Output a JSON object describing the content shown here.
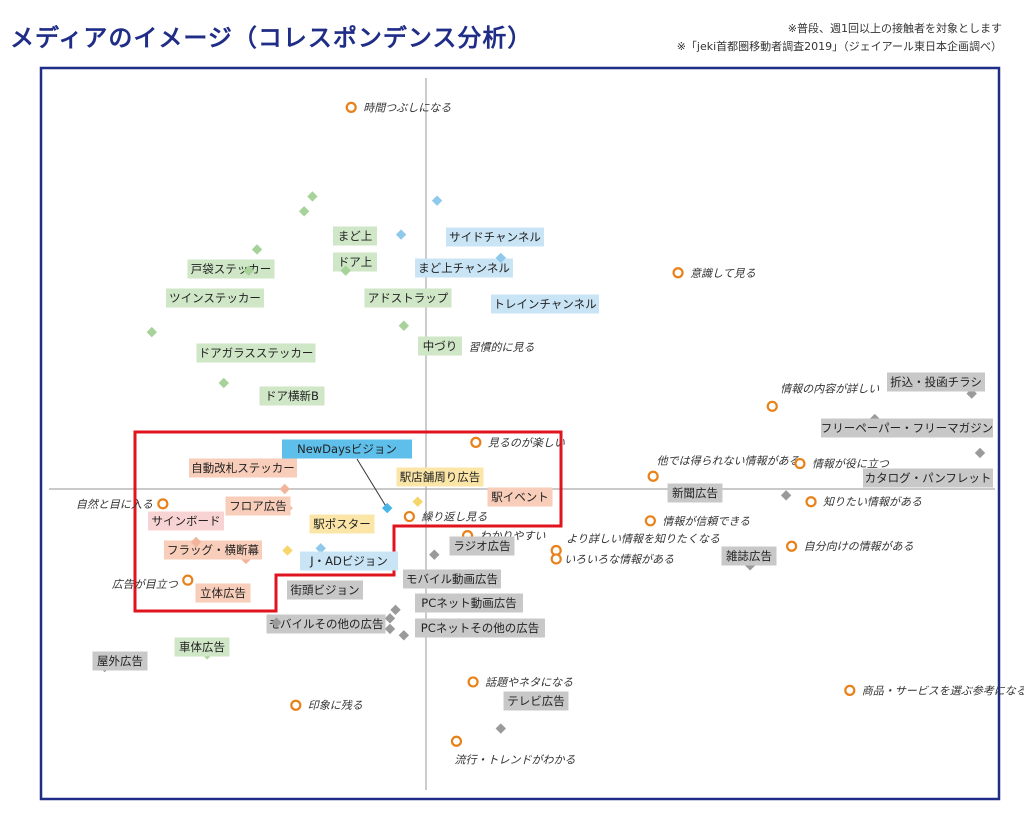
{
  "title": "メディアのイメージ（コレスポンデンス分析）",
  "notes": [
    "※普段、週1回以上の接触者を対象とします",
    "※「jeki首都圏移動者調査2019」（ジェイアール東日本企画調べ）"
  ],
  "colors": {
    "frame": "#1f2d86",
    "highlight": "#e0141e",
    "orange_marker": "#e8811a",
    "green_box": "#cfe6c7",
    "green_marker": "#a7d29a",
    "blue_box": "#c9e4f5",
    "blue_marker": "#8ec9ec",
    "gray_box": "#c8c8c8",
    "gray_marker": "#9a9a9a",
    "salmon_box": "#f8cdb9",
    "salmon_marker": "#f2b49a",
    "pink_box": "#f8d3d3",
    "yellow_box": "#fbe6a8",
    "yellow_marker": "#f6d56b",
    "cyan_box": "#5ebfea",
    "cyan_marker": "#47b7e8"
  },
  "chart_data": {
    "type": "scatter",
    "title": "メディアのイメージ（コレスポンデンス分析）",
    "xlabel": "",
    "ylabel": "",
    "xlim": [
      -1,
      1
    ],
    "ylim": [
      -1,
      1
    ],
    "grid": false,
    "image_points": [
      {
        "label": "時間つぶしになる",
        "x": -0.135,
        "y": 0.9
      },
      {
        "label": "意識して見る",
        "x": 0.455,
        "y": 0.51
      },
      {
        "label": "習慣的に見る",
        "x": 0.055,
        "y": 0.335
      },
      {
        "label": "情報の内容が詳しい",
        "x": 0.625,
        "y": 0.195
      },
      {
        "label": "見るのが楽しい",
        "x": 0.09,
        "y": 0.11
      },
      {
        "label": "他では得られない情報がある",
        "x": 0.41,
        "y": 0.03
      },
      {
        "label": "情報が役に立つ",
        "x": 0.675,
        "y": 0.06
      },
      {
        "label": "知りたい情報がある",
        "x": 0.695,
        "y": -0.03
      },
      {
        "label": "自然と目に入る",
        "x": -0.475,
        "y": -0.035
      },
      {
        "label": "繰り返し見る",
        "x": -0.03,
        "y": -0.065
      },
      {
        "label": "情報が信頼できる",
        "x": 0.405,
        "y": -0.075
      },
      {
        "label": "わかりやすい",
        "x": 0.075,
        "y": -0.11
      },
      {
        "label": "より詳しい情報を知りたくなる",
        "x": 0.235,
        "y": -0.145
      },
      {
        "label": "いろいろな情報がある",
        "x": 0.235,
        "y": -0.165
      },
      {
        "label": "自分向けの情報がある",
        "x": 0.66,
        "y": -0.135
      },
      {
        "label": "広告が目立つ",
        "x": -0.43,
        "y": -0.215
      },
      {
        "label": "話題やネタになる",
        "x": 0.085,
        "y": -0.455
      },
      {
        "label": "商品・サービスを選ぶ参考になる",
        "x": 0.765,
        "y": -0.475
      },
      {
        "label": "印象に残る",
        "x": -0.235,
        "y": -0.51
      },
      {
        "label": "流行・トレンドがわかる",
        "x": 0.055,
        "y": -0.595
      }
    ],
    "media_points": [
      {
        "label": "まど上",
        "x": -0.205,
        "y": 0.69,
        "group": "green"
      },
      {
        "label": "ドア上",
        "x": -0.22,
        "y": 0.655,
        "group": "green"
      },
      {
        "label": "戸袋ステッカー",
        "x": -0.305,
        "y": 0.565,
        "group": "green"
      },
      {
        "label": "ツインステッカー",
        "x": -0.32,
        "y": 0.515,
        "group": "green"
      },
      {
        "label": "アドストラップ",
        "x": -0.145,
        "y": 0.515,
        "group": "green"
      },
      {
        "label": "ドアガラスステッカー",
        "x": -0.495,
        "y": 0.37,
        "group": "green"
      },
      {
        "label": "中づり",
        "x": -0.04,
        "y": 0.385,
        "group": "green"
      },
      {
        "label": "ドア横新B",
        "x": -0.365,
        "y": 0.25,
        "group": "green"
      },
      {
        "label": "車体広告",
        "x": -0.395,
        "y": -0.39,
        "group": "green"
      },
      {
        "label": "サイドチャンネル",
        "x": 0.02,
        "y": 0.68,
        "group": "blue"
      },
      {
        "label": "まど上チャンネル",
        "x": -0.045,
        "y": 0.6,
        "group": "blue"
      },
      {
        "label": "トレインチャンネル",
        "x": 0.135,
        "y": 0.545,
        "group": "blue"
      },
      {
        "label": "折込・投函チラシ",
        "x": 0.985,
        "y": 0.225,
        "group": "gray"
      },
      {
        "label": "フリーペーパー・フリーマガジン",
        "x": 0.81,
        "y": 0.165,
        "group": "gray"
      },
      {
        "label": "カタログ・パンフレット",
        "x": 1.0,
        "y": 0.085,
        "group": "gray"
      },
      {
        "label": "新聞広告",
        "x": 0.65,
        "y": -0.015,
        "group": "gray"
      },
      {
        "label": "雑誌広告",
        "x": 0.585,
        "y": -0.18,
        "group": "gray"
      },
      {
        "label": "ラジオ広告",
        "x": 0.015,
        "y": -0.155,
        "group": "gray"
      },
      {
        "label": "モバイル動画広告",
        "x": -0.055,
        "y": -0.285,
        "group": "gray"
      },
      {
        "label": "PCネット動画広告",
        "x": -0.065,
        "y": -0.305,
        "group": "gray"
      },
      {
        "label": "PCネットその他の広告",
        "x": -0.04,
        "y": -0.345,
        "group": "gray"
      },
      {
        "label": "モバイルその他の広告",
        "x": -0.065,
        "y": -0.33,
        "group": "gray"
      },
      {
        "label": "街頭ビジョン",
        "x": -0.27,
        "y": -0.315,
        "group": "gray"
      },
      {
        "label": "屋外広告",
        "x": -0.58,
        "y": -0.42,
        "group": "gray"
      },
      {
        "label": "テレビ広告",
        "x": 0.135,
        "y": -0.565,
        "group": "gray"
      },
      {
        "label": "自動改札ステッカー",
        "x": -0.255,
        "y": 0.0,
        "group": "salmon"
      },
      {
        "label": "フロア広告",
        "x": -0.25,
        "y": -0.045,
        "group": "salmon"
      },
      {
        "label": "フラッグ・横断幕",
        "x": -0.325,
        "y": -0.165,
        "group": "salmon"
      },
      {
        "label": "立体広告",
        "x": -0.345,
        "y": -0.245,
        "group": "salmon"
      },
      {
        "label": "サインボード",
        "x": -0.415,
        "y": -0.125,
        "group": "pink"
      },
      {
        "label": "駅イベント",
        "x": 0.145,
        "y": -0.02,
        "group": "salmon"
      },
      {
        "label": "駅店舗周り広告",
        "x": -0.015,
        "y": -0.03,
        "group": "yellow"
      },
      {
        "label": "駅ポスター",
        "x": -0.25,
        "y": -0.145,
        "group": "yellow"
      },
      {
        "label": "J・ADビジョン",
        "x": -0.19,
        "y": -0.14,
        "group": "blue"
      },
      {
        "label": "NewDaysビジョン",
        "x": -0.07,
        "y": -0.045,
        "group": "cyan"
      }
    ]
  }
}
